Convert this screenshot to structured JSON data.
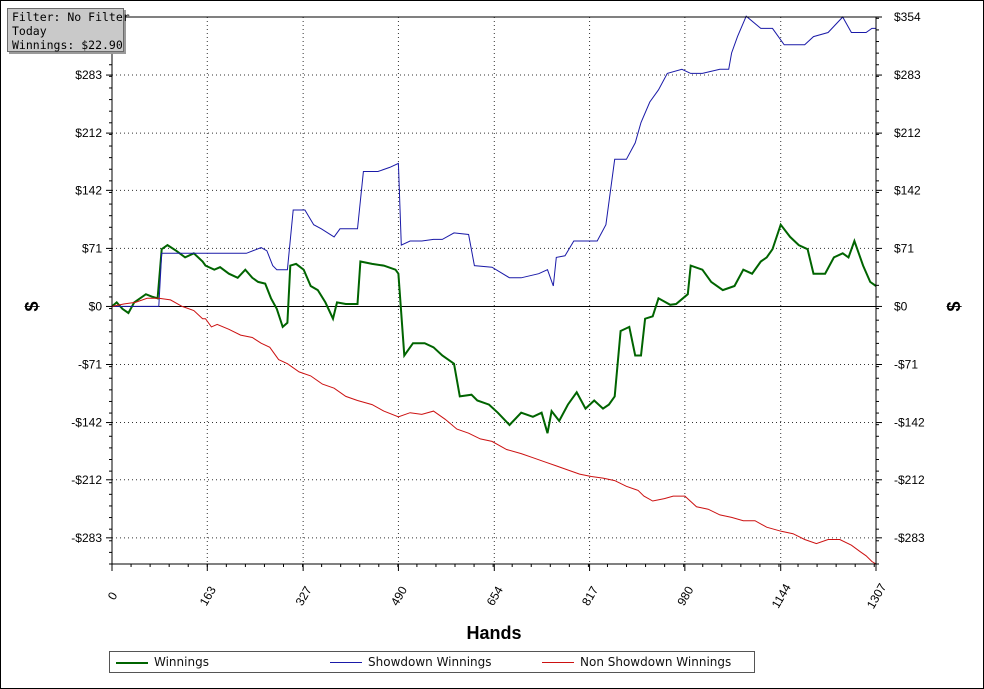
{
  "info": {
    "filter": "Filter: No Filter",
    "period": "Today",
    "winnings": "Winnings: $22.90"
  },
  "chart_data": {
    "type": "line",
    "xlabel": "Hands",
    "ylabel_left": "$",
    "ylabel_right": "$",
    "xlim": [
      0,
      1307
    ],
    "ylim": [
      -315,
      354
    ],
    "x_ticks": [
      0,
      163,
      327,
      490,
      654,
      817,
      980,
      1144,
      1307
    ],
    "x_tick_labels": [
      "0",
      "163",
      "327",
      "490",
      "654",
      "817",
      "980",
      "1144",
      "1307"
    ],
    "y_ticks": [
      354,
      283,
      212,
      142,
      71,
      0,
      -71,
      -142,
      -212,
      -283
    ],
    "y_tick_labels": [
      "$354",
      "$283",
      "$212",
      "$142",
      "$71",
      "$0",
      "-$71",
      "-$142",
      "-$212",
      "-$283"
    ],
    "grid": true,
    "legend_position": "bottom",
    "series": [
      {
        "name": "Winnings",
        "color": "#006400",
        "points": [
          [
            0,
            0
          ],
          [
            8,
            5
          ],
          [
            18,
            -3
          ],
          [
            28,
            -8
          ],
          [
            38,
            5
          ],
          [
            48,
            10
          ],
          [
            58,
            15
          ],
          [
            68,
            12
          ],
          [
            78,
            10
          ],
          [
            85,
            70
          ],
          [
            95,
            75
          ],
          [
            110,
            68
          ],
          [
            125,
            60
          ],
          [
            140,
            65
          ],
          [
            155,
            55
          ],
          [
            160,
            50
          ],
          [
            175,
            45
          ],
          [
            185,
            48
          ],
          [
            200,
            40
          ],
          [
            215,
            35
          ],
          [
            228,
            45
          ],
          [
            240,
            35
          ],
          [
            250,
            30
          ],
          [
            262,
            28
          ],
          [
            272,
            10
          ],
          [
            282,
            -3
          ],
          [
            292,
            -25
          ],
          [
            300,
            -20
          ],
          [
            305,
            50
          ],
          [
            315,
            52
          ],
          [
            328,
            45
          ],
          [
            340,
            25
          ],
          [
            352,
            20
          ],
          [
            365,
            5
          ],
          [
            378,
            -15
          ],
          [
            385,
            5
          ],
          [
            400,
            3
          ],
          [
            420,
            3
          ],
          [
            425,
            55
          ],
          [
            445,
            52
          ],
          [
            465,
            50
          ],
          [
            485,
            45
          ],
          [
            490,
            40
          ],
          [
            500,
            -60
          ],
          [
            515,
            -45
          ],
          [
            535,
            -45
          ],
          [
            550,
            -50
          ],
          [
            565,
            -60
          ],
          [
            585,
            -70
          ],
          [
            595,
            -110
          ],
          [
            615,
            -108
          ],
          [
            625,
            -115
          ],
          [
            645,
            -120
          ],
          [
            660,
            -130
          ],
          [
            680,
            -145
          ],
          [
            700,
            -130
          ],
          [
            720,
            -135
          ],
          [
            735,
            -130
          ],
          [
            745,
            -155
          ],
          [
            752,
            -128
          ],
          [
            765,
            -140
          ],
          [
            780,
            -120
          ],
          [
            795,
            -105
          ],
          [
            810,
            -125
          ],
          [
            825,
            -115
          ],
          [
            840,
            -125
          ],
          [
            850,
            -120
          ],
          [
            860,
            -110
          ],
          [
            870,
            -30
          ],
          [
            885,
            -25
          ],
          [
            895,
            -60
          ],
          [
            905,
            -60
          ],
          [
            912,
            -15
          ],
          [
            925,
            -12
          ],
          [
            935,
            10
          ],
          [
            955,
            2
          ],
          [
            965,
            3
          ],
          [
            985,
            15
          ],
          [
            990,
            50
          ],
          [
            1010,
            45
          ],
          [
            1025,
            30
          ],
          [
            1045,
            20
          ],
          [
            1065,
            25
          ],
          [
            1080,
            45
          ],
          [
            1095,
            40
          ],
          [
            1110,
            55
          ],
          [
            1120,
            60
          ],
          [
            1130,
            70
          ],
          [
            1144,
            100
          ],
          [
            1160,
            85
          ],
          [
            1175,
            75
          ],
          [
            1190,
            70
          ],
          [
            1200,
            40
          ],
          [
            1220,
            40
          ],
          [
            1235,
            60
          ],
          [
            1250,
            65
          ],
          [
            1260,
            60
          ],
          [
            1270,
            80
          ],
          [
            1285,
            50
          ],
          [
            1297,
            30
          ],
          [
            1307,
            25
          ]
        ]
      },
      {
        "name": "Showdown Winnings",
        "color": "#1a1aa8",
        "points": [
          [
            0,
            0
          ],
          [
            20,
            0
          ],
          [
            40,
            0
          ],
          [
            80,
            0
          ],
          [
            85,
            65
          ],
          [
            120,
            65
          ],
          [
            160,
            65
          ],
          [
            200,
            65
          ],
          [
            230,
            65
          ],
          [
            255,
            72
          ],
          [
            265,
            68
          ],
          [
            275,
            50
          ],
          [
            282,
            45
          ],
          [
            300,
            45
          ],
          [
            310,
            118
          ],
          [
            330,
            118
          ],
          [
            345,
            100
          ],
          [
            358,
            95
          ],
          [
            380,
            85
          ],
          [
            390,
            95
          ],
          [
            400,
            95
          ],
          [
            420,
            95
          ],
          [
            430,
            165
          ],
          [
            455,
            165
          ],
          [
            475,
            170
          ],
          [
            490,
            175
          ],
          [
            495,
            75
          ],
          [
            510,
            80
          ],
          [
            530,
            80
          ],
          [
            550,
            82
          ],
          [
            565,
            82
          ],
          [
            585,
            90
          ],
          [
            610,
            88
          ],
          [
            620,
            50
          ],
          [
            650,
            48
          ],
          [
            680,
            35
          ],
          [
            700,
            35
          ],
          [
            730,
            40
          ],
          [
            745,
            45
          ],
          [
            755,
            25
          ],
          [
            760,
            60
          ],
          [
            775,
            62
          ],
          [
            790,
            80
          ],
          [
            810,
            80
          ],
          [
            830,
            80
          ],
          [
            845,
            100
          ],
          [
            860,
            180
          ],
          [
            880,
            180
          ],
          [
            895,
            200
          ],
          [
            905,
            225
          ],
          [
            920,
            250
          ],
          [
            935,
            265
          ],
          [
            950,
            285
          ],
          [
            975,
            290
          ],
          [
            990,
            285
          ],
          [
            1010,
            285
          ],
          [
            1040,
            290
          ],
          [
            1055,
            290
          ],
          [
            1060,
            310
          ],
          [
            1070,
            330
          ],
          [
            1085,
            355
          ],
          [
            1110,
            340
          ],
          [
            1125,
            340
          ],
          [
            1130,
            340
          ],
          [
            1150,
            320
          ],
          [
            1185,
            320
          ],
          [
            1200,
            330
          ],
          [
            1225,
            335
          ],
          [
            1250,
            354
          ],
          [
            1265,
            335
          ],
          [
            1290,
            335
          ],
          [
            1300,
            340
          ],
          [
            1307,
            340
          ]
        ]
      },
      {
        "name": "Non Showdown Winnings",
        "color": "#cc1111",
        "points": [
          [
            0,
            0
          ],
          [
            20,
            3
          ],
          [
            40,
            5
          ],
          [
            60,
            10
          ],
          [
            80,
            10
          ],
          [
            100,
            8
          ],
          [
            120,
            0
          ],
          [
            140,
            -5
          ],
          [
            155,
            -15
          ],
          [
            160,
            -15
          ],
          [
            170,
            -25
          ],
          [
            180,
            -22
          ],
          [
            200,
            -28
          ],
          [
            220,
            -35
          ],
          [
            240,
            -38
          ],
          [
            255,
            -45
          ],
          [
            270,
            -50
          ],
          [
            285,
            -65
          ],
          [
            300,
            -70
          ],
          [
            320,
            -80
          ],
          [
            340,
            -85
          ],
          [
            360,
            -95
          ],
          [
            380,
            -100
          ],
          [
            400,
            -110
          ],
          [
            420,
            -115
          ],
          [
            445,
            -120
          ],
          [
            465,
            -128
          ],
          [
            490,
            -135
          ],
          [
            510,
            -130
          ],
          [
            530,
            -132
          ],
          [
            550,
            -128
          ],
          [
            570,
            -138
          ],
          [
            590,
            -150
          ],
          [
            610,
            -155
          ],
          [
            630,
            -162
          ],
          [
            650,
            -165
          ],
          [
            675,
            -175
          ],
          [
            700,
            -180
          ],
          [
            720,
            -185
          ],
          [
            740,
            -190
          ],
          [
            760,
            -195
          ],
          [
            780,
            -200
          ],
          [
            800,
            -205
          ],
          [
            820,
            -208
          ],
          [
            840,
            -210
          ],
          [
            860,
            -213
          ],
          [
            880,
            -220
          ],
          [
            900,
            -225
          ],
          [
            910,
            -232
          ],
          [
            925,
            -238
          ],
          [
            945,
            -235
          ],
          [
            960,
            -232
          ],
          [
            980,
            -232
          ],
          [
            1000,
            -245
          ],
          [
            1020,
            -248
          ],
          [
            1040,
            -255
          ],
          [
            1060,
            -258
          ],
          [
            1080,
            -262
          ],
          [
            1100,
            -262
          ],
          [
            1120,
            -270
          ],
          [
            1145,
            -275
          ],
          [
            1165,
            -278
          ],
          [
            1185,
            -285
          ],
          [
            1205,
            -290
          ],
          [
            1225,
            -285
          ],
          [
            1245,
            -285
          ],
          [
            1265,
            -292
          ],
          [
            1280,
            -300
          ],
          [
            1290,
            -305
          ],
          [
            1300,
            -312
          ],
          [
            1307,
            -315
          ]
        ]
      }
    ]
  }
}
